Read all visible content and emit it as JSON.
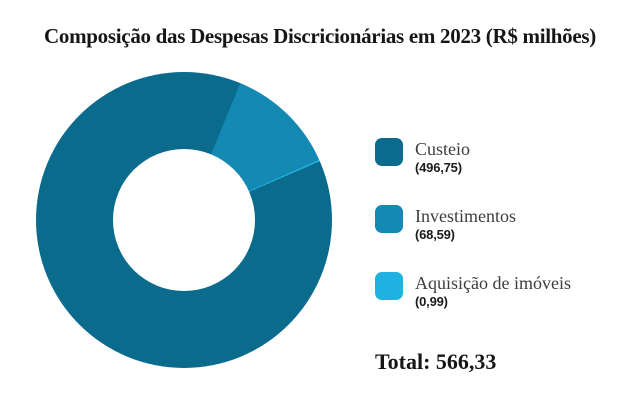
{
  "title": "Composição das Despesas Discricionárias em 2023 (R$ milhões)",
  "chart_data": {
    "type": "pie",
    "subtype": "donut",
    "title": "Composição das Despesas Discricionárias em 2023 (R$ milhões)",
    "categories": [
      "Custeio",
      "Investimentos",
      "Aquisição de imóveis"
    ],
    "values": [
      496.75,
      68.59,
      0.99
    ],
    "value_labels": [
      "(496,75)",
      "(68,59)",
      "(0,99)"
    ],
    "colors": [
      "#0B6B8C",
      "#1489B4",
      "#1FB2E1"
    ],
    "total": 566.33,
    "legend_position": "right",
    "grid": false
  },
  "legend": {
    "items": [
      {
        "label": "Custeio",
        "value": "(496,75)"
      },
      {
        "label": "Investimentos",
        "value": "(68,59)"
      },
      {
        "label": "Aquisição de imóveis",
        "value": "(0,99)"
      }
    ]
  },
  "total": {
    "text": "Total: 566,33"
  }
}
